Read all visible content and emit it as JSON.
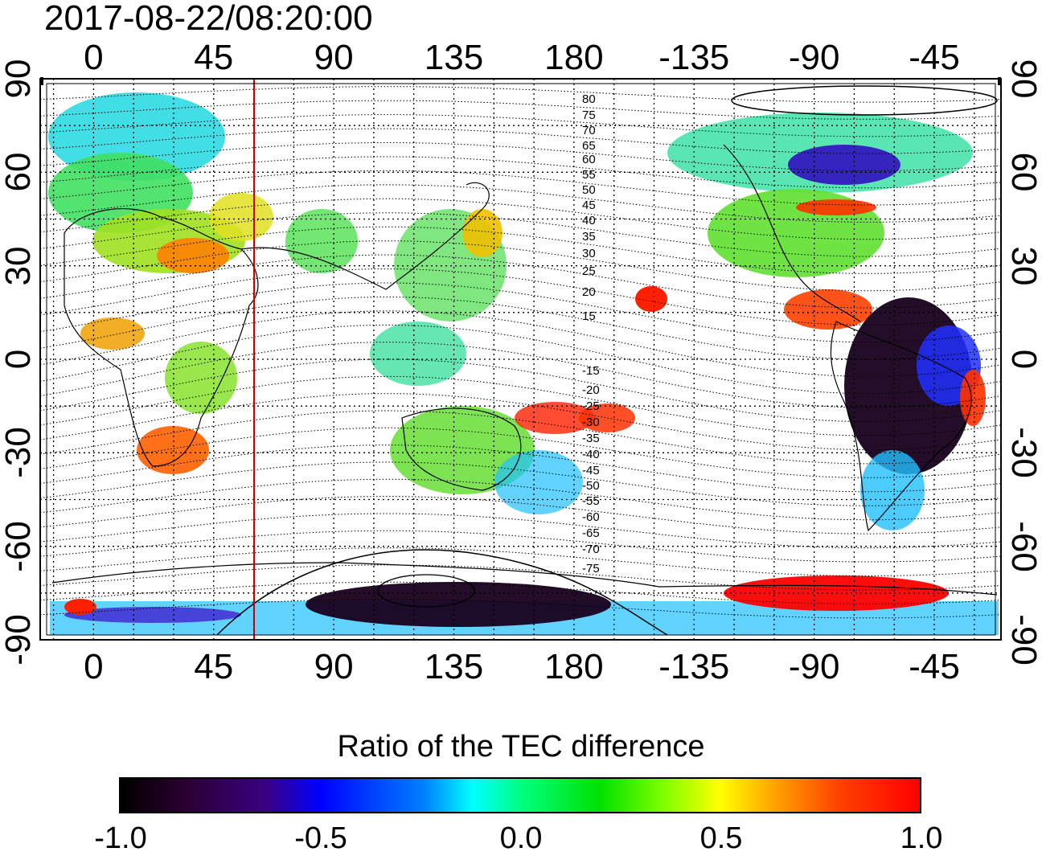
{
  "title": "2017-08-22/08:20:00",
  "lon_ticks_top": [
    "0",
    "45",
    "90",
    "135",
    "180",
    "-135",
    "-90",
    "-45"
  ],
  "lon_ticks_bottom": [
    "0",
    "45",
    "90",
    "135",
    "180",
    "-135",
    "-90",
    "-45"
  ],
  "lat_ticks_left": [
    "90",
    "60",
    "30",
    "0",
    "-30",
    "-60",
    "-90"
  ],
  "lat_ticks_right": [
    "90",
    "60",
    "30",
    "0",
    "-30",
    "-60",
    "-90"
  ],
  "contour_labels": [
    "80",
    "75",
    "70",
    "65",
    "60",
    "55",
    "50",
    "45",
    "40",
    "35",
    "30",
    "25",
    "20",
    "15",
    "-15",
    "-20",
    "-25",
    "-30",
    "-35",
    "-40",
    "-45",
    "-50",
    "-55",
    "-60",
    "-65",
    "-70",
    "-75"
  ],
  "colorbar": {
    "title": "Ratio of the TEC difference",
    "ticks": [
      "-1.0",
      "-0.5",
      "0.0",
      "0.5",
      "1.0"
    ],
    "range": [
      -1.0,
      1.0
    ]
  },
  "colors": {
    "marker_line": "#cc0000",
    "strong_positive": "#ff0000",
    "strong_negative": "#1a0020",
    "neutral": "#00e000"
  },
  "map": {
    "projection": "equirectangular",
    "lon_range": [
      -20,
      340
    ],
    "lat_range": [
      -90,
      90
    ],
    "marker_longitude": 55,
    "grid_lon_step": 15,
    "grid_lat_step": 15
  }
}
